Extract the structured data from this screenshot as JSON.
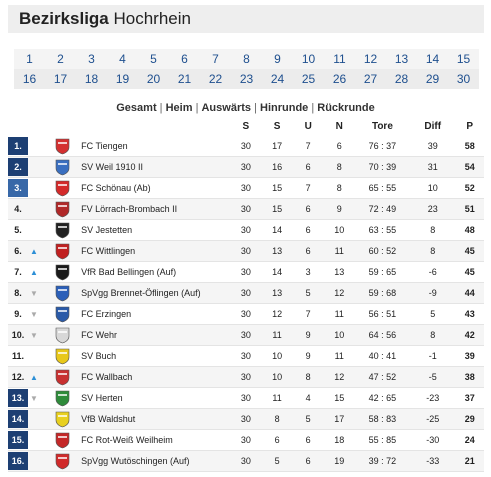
{
  "title": {
    "bold": "Bezirksliga",
    "rest": "Hochrhein"
  },
  "rounds": {
    "row1": [
      "1",
      "2",
      "3",
      "4",
      "5",
      "6",
      "7",
      "8",
      "9",
      "10",
      "11",
      "12",
      "13",
      "14",
      "15"
    ],
    "row2": [
      "16",
      "17",
      "18",
      "19",
      "20",
      "21",
      "22",
      "23",
      "24",
      "25",
      "26",
      "27",
      "28",
      "29",
      "30"
    ]
  },
  "view_modes": [
    "Gesamt",
    "Heim",
    "Auswärts",
    "Hinrunde",
    "Rückrunde"
  ],
  "columns": {
    "s1": "S",
    "s2": "S",
    "u": "U",
    "n": "N",
    "tore": "Tore",
    "diff": "Diff",
    "p": "P"
  },
  "colors": {
    "rank_dark": "#1d3f73",
    "rank_light": "#3868a8",
    "trend_up": "#2c8fd6",
    "trend_down": "#aaaaaa"
  },
  "rows": [
    {
      "rank": "1.",
      "trend": "",
      "team": "FC Tiengen",
      "played": "30",
      "wins": "17",
      "draws": "7",
      "losses": "6",
      "goals": "76 : 37",
      "diff": "39",
      "pts": "58",
      "crest": "#d43030"
    },
    {
      "rank": "2.",
      "trend": "",
      "team": "SV Weil 1910 II",
      "played": "30",
      "wins": "16",
      "draws": "6",
      "losses": "8",
      "goals": "70 : 39",
      "diff": "31",
      "pts": "54",
      "crest": "#3a6fc0"
    },
    {
      "rank": "3.",
      "trend": "",
      "team": "FC Schönau (Ab)",
      "played": "30",
      "wins": "15",
      "draws": "7",
      "losses": "8",
      "goals": "65 : 55",
      "diff": "10",
      "pts": "52",
      "crest": "#d42a2a"
    },
    {
      "rank": "4.",
      "trend": "",
      "team": "FV Lörrach-Brombach II",
      "played": "30",
      "wins": "15",
      "draws": "6",
      "losses": "9",
      "goals": "72 : 49",
      "diff": "23",
      "pts": "51",
      "crest": "#b02828"
    },
    {
      "rank": "5.",
      "trend": "",
      "team": "SV Jestetten",
      "played": "30",
      "wins": "14",
      "draws": "6",
      "losses": "10",
      "goals": "63 : 55",
      "diff": "8",
      "pts": "48",
      "crest": "#222222"
    },
    {
      "rank": "6.",
      "trend": "up",
      "team": "FC Wittlingen",
      "played": "30",
      "wins": "13",
      "draws": "6",
      "losses": "11",
      "goals": "60 : 52",
      "diff": "8",
      "pts": "45",
      "crest": "#c02020"
    },
    {
      "rank": "7.",
      "trend": "up",
      "team": "VfR Bad Bellingen (Auf)",
      "played": "30",
      "wins": "14",
      "draws": "3",
      "losses": "13",
      "goals": "59 : 65",
      "diff": "-6",
      "pts": "45",
      "crest": "#1a1a1a"
    },
    {
      "rank": "8.",
      "trend": "down",
      "team": "SpVgg Brennet-Öflingen (Auf)",
      "played": "30",
      "wins": "13",
      "draws": "5",
      "losses": "12",
      "goals": "59 : 68",
      "diff": "-9",
      "pts": "44",
      "crest": "#2b5fb8"
    },
    {
      "rank": "9.",
      "trend": "down",
      "team": "FC Erzingen",
      "played": "30",
      "wins": "12",
      "draws": "7",
      "losses": "11",
      "goals": "56 : 51",
      "diff": "5",
      "pts": "43",
      "crest": "#2a5aa8"
    },
    {
      "rank": "10.",
      "trend": "down",
      "team": "FC Wehr",
      "played": "30",
      "wins": "11",
      "draws": "9",
      "losses": "10",
      "goals": "64 : 56",
      "diff": "8",
      "pts": "42",
      "crest": "#d8d8d8"
    },
    {
      "rank": "11.",
      "trend": "",
      "team": "SV Buch",
      "played": "30",
      "wins": "10",
      "draws": "9",
      "losses": "11",
      "goals": "40 : 41",
      "diff": "-1",
      "pts": "39",
      "crest": "#e8c81a"
    },
    {
      "rank": "12.",
      "trend": "up",
      "team": "FC Wallbach",
      "played": "30",
      "wins": "10",
      "draws": "8",
      "losses": "12",
      "goals": "47 : 52",
      "diff": "-5",
      "pts": "38",
      "crest": "#c83030"
    },
    {
      "rank": "13.",
      "trend": "down",
      "team": "SV Herten",
      "played": "30",
      "wins": "11",
      "draws": "4",
      "losses": "15",
      "goals": "42 : 65",
      "diff": "-23",
      "pts": "37",
      "crest": "#2e8b3a"
    },
    {
      "rank": "14.",
      "trend": "",
      "team": "VfB Waldshut",
      "played": "30",
      "wins": "8",
      "draws": "5",
      "losses": "17",
      "goals": "58 : 83",
      "diff": "-25",
      "pts": "29",
      "crest": "#e8d020"
    },
    {
      "rank": "15.",
      "trend": "",
      "team": "FC Rot-Weiß Weilheim",
      "played": "30",
      "wins": "6",
      "draws": "6",
      "losses": "18",
      "goals": "55 : 85",
      "diff": "-30",
      "pts": "24",
      "crest": "#c42828"
    },
    {
      "rank": "16.",
      "trend": "",
      "team": "SpVgg Wutöschingen (Auf)",
      "played": "30",
      "wins": "5",
      "draws": "6",
      "losses": "19",
      "goals": "39 : 72",
      "diff": "-33",
      "pts": "21",
      "crest": "#d02a2a"
    }
  ]
}
